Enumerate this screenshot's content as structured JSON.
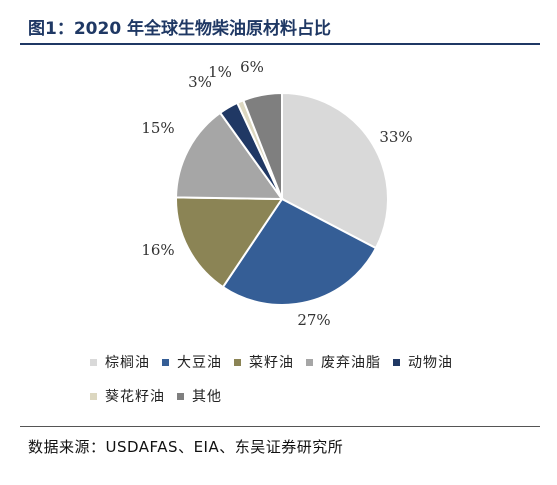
{
  "header": {
    "title": "图1：2020 年全球生物柴油原材料占比"
  },
  "footer": {
    "source": "数据来源：USDAFAS、EIA、东吴证券研究所"
  },
  "chart_data": {
    "type": "pie",
    "title": "图1：2020 年全球生物柴油原材料占比",
    "categories": [
      "棕榈油",
      "大豆油",
      "菜籽油",
      "废弃油脂",
      "动物油",
      "葵花籽油",
      "其他"
    ],
    "values": [
      33,
      27,
      16,
      15,
      3,
      1,
      6
    ],
    "labels": [
      "33%",
      "27%",
      "16%",
      "15%",
      "3%",
      "1%",
      "6%"
    ],
    "colors": [
      "#d9d9d9",
      "#355e96",
      "#8b8455",
      "#a6a6a6",
      "#203864",
      "#dcd7c0",
      "#7f7f7f"
    ],
    "legend": "bottom"
  }
}
